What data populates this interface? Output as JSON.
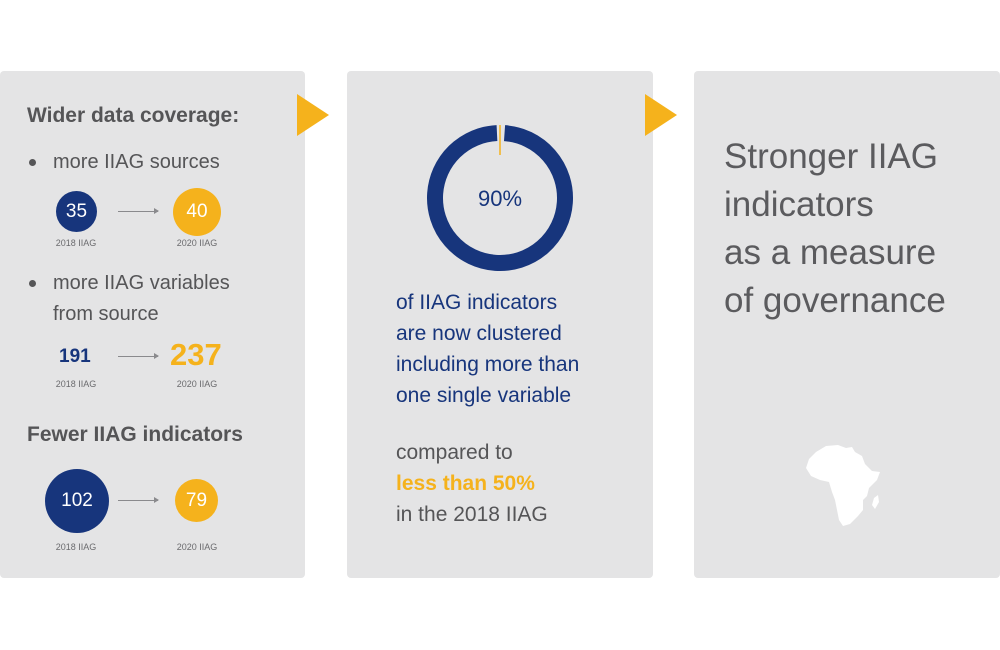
{
  "panel1": {
    "heading1": "Wider data coverage:",
    "bullet1": "more IIAG sources",
    "sources": {
      "from_value": "35",
      "from_label": "2018 IIAG",
      "to_value": "40",
      "to_label": "2020 IIAG"
    },
    "bullet2_line1": "more IIAG variables",
    "bullet2_line2": "from source",
    "variables": {
      "from_value": "191",
      "from_label": "2018 IIAG",
      "to_value": "237",
      "to_label": "2020 IIAG"
    },
    "heading2": "Fewer IIAG indicators",
    "indicators": {
      "from_value": "102",
      "from_label": "2018 IIAG",
      "to_value": "79",
      "to_label": "2020 IIAG"
    }
  },
  "panel2": {
    "percent_label": "90%",
    "percent_value": 0.9,
    "lines": [
      "of IIAG indicators",
      "are now clustered",
      "including more than",
      "one single variable"
    ],
    "compare_line1": "compared to",
    "compare_highlight": "less than 50%",
    "compare_line3": "in the 2018 IIAG"
  },
  "panel3": {
    "lines": [
      "Stronger IIAG",
      "indicators",
      "as a measure",
      "of governance"
    ]
  },
  "colors": {
    "navy": "#17357c",
    "gold": "#f5b21c",
    "panel": "#e4e4e5"
  },
  "icons": {
    "arrow": "right-triangle-arrow",
    "map": "africa-map-icon"
  }
}
